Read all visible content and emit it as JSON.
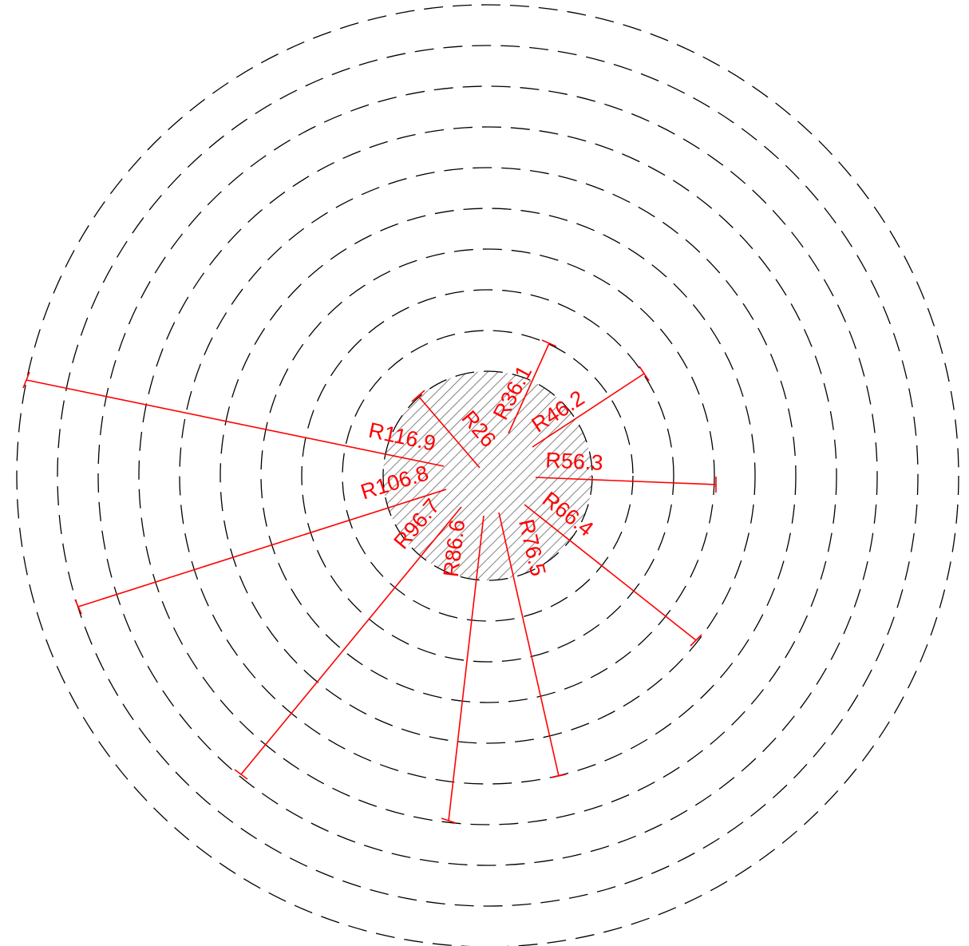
{
  "drawing": {
    "colors": {
      "dimension": "#ff0000",
      "circle": "#000000",
      "hatch": "#8a8a8a",
      "background": "#ffffff"
    },
    "hatched_circle": {
      "pattern": "diagonal hatch",
      "radius_label": "R26"
    },
    "circle_style": "dashed",
    "dimensions": [
      {
        "label": "R26"
      },
      {
        "label": "R36.1"
      },
      {
        "label": "R46.2"
      },
      {
        "label": "R56.3"
      },
      {
        "label": "R66.4"
      },
      {
        "label": "R76.5"
      },
      {
        "label": "R86.6"
      },
      {
        "label": "R96.7"
      },
      {
        "label": "R106.8"
      },
      {
        "label": "R116.9"
      }
    ]
  }
}
